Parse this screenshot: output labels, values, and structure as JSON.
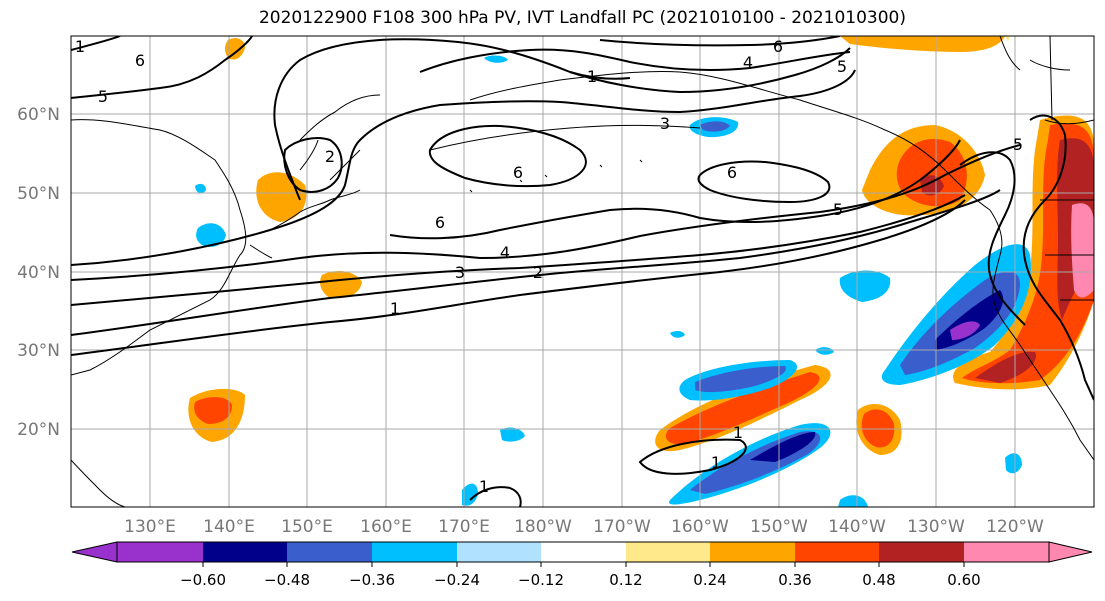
{
  "title": "2020122900 F108 300 hPa PV, IVT Landfall PC (2021010100 - 2021010300)",
  "lat_labels": [
    "60°N",
    "50°N",
    "40°N",
    "30°N",
    "20°N"
  ],
  "lon_labels": [
    "130°E",
    "140°E",
    "150°E",
    "160°E",
    "170°E",
    "180°W",
    "170°W",
    "160°W",
    "150°W",
    "140°W",
    "130°W",
    "120°W"
  ],
  "colorbar": {
    "ticks": [
      "−0.60",
      "−0.48",
      "−0.36",
      "−0.24",
      "−0.12",
      "0.12",
      "0.24",
      "0.36",
      "0.48",
      "0.60"
    ],
    "colors": [
      "#9932cc",
      "#00008b",
      "#3a5fcd",
      "#00bfff",
      "#b0e2ff",
      "#ffffff",
      "#ffe98a",
      "#ffa500",
      "#ff4500",
      "#b22222",
      "#ff88b0"
    ]
  },
  "contour_labels": [
    "1",
    "1",
    "1",
    "1",
    "2",
    "2",
    "3",
    "3",
    "4",
    "4",
    "5",
    "5",
    "5",
    "5",
    "6",
    "6",
    "6",
    "6",
    "6",
    "1",
    "1"
  ]
}
